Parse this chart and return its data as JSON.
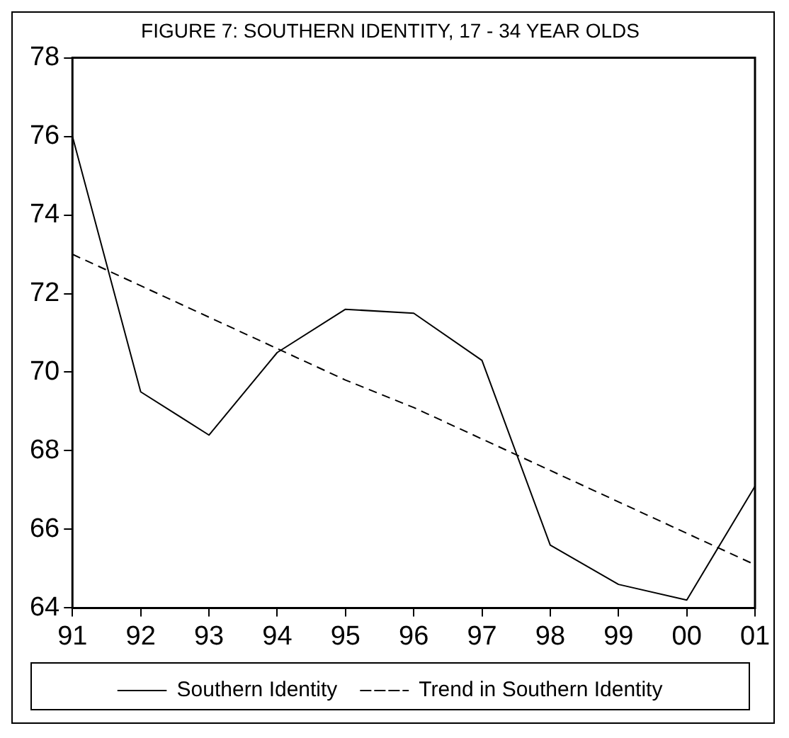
{
  "chart_data": {
    "type": "line",
    "title": "FIGURE 7: SOUTHERN IDENTITY, 17 - 34 YEAR OLDS",
    "categories": [
      "91",
      "92",
      "93",
      "94",
      "95",
      "96",
      "97",
      "98",
      "99",
      "00",
      "01"
    ],
    "series": [
      {
        "name": "Southern Identity",
        "color": "#000000",
        "line_style": "solid",
        "values": [
          76.0,
          69.5,
          68.4,
          70.5,
          71.6,
          71.5,
          70.3,
          65.6,
          64.6,
          64.2,
          67.1
        ]
      },
      {
        "name": "Trend in Southern Identity",
        "color": "#000000",
        "line_style": "dashed",
        "values": [
          73.0,
          72.2,
          71.4,
          70.6,
          69.8,
          69.1,
          68.3,
          67.5,
          66.7,
          65.9,
          65.1
        ]
      }
    ],
    "ylim": [
      64,
      78
    ],
    "yticks": [
      64,
      66,
      68,
      70,
      72,
      74,
      76,
      78
    ],
    "grid": false,
    "legend": "bottom",
    "marker": "none"
  }
}
